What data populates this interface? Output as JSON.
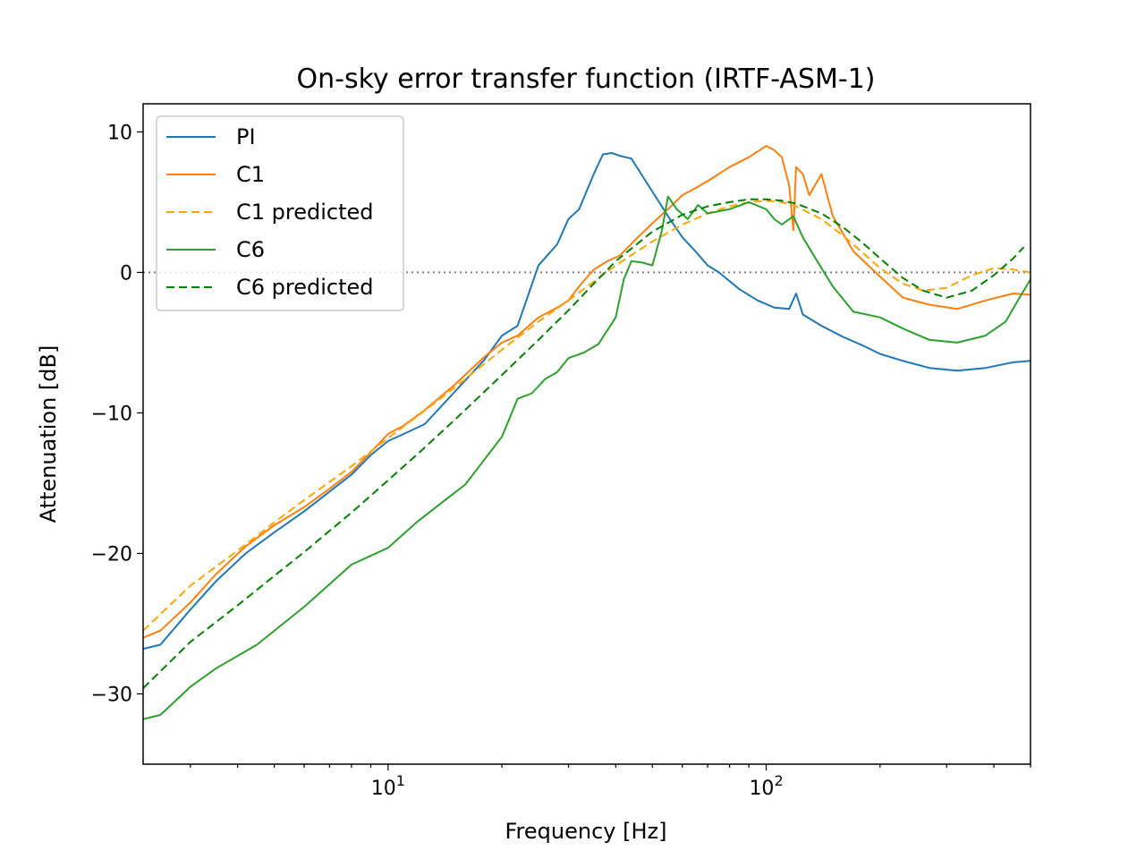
{
  "chart_data": {
    "type": "line",
    "title": "On-sky error transfer function (IRTF-ASM-1)",
    "xlabel": "Frequency [Hz]",
    "ylabel": "Attenuation [dB]",
    "xscale": "log",
    "xlim": [
      2.25,
      500
    ],
    "ylim": [
      -35,
      12
    ],
    "xticks": [
      {
        "value": 10,
        "base": "10",
        "exp": "1"
      },
      {
        "value": 100,
        "base": "10",
        "exp": "2"
      }
    ],
    "yticks": [
      {
        "value": 10,
        "label": "10"
      },
      {
        "value": 0,
        "label": "0"
      },
      {
        "value": -10,
        "label": "−10"
      },
      {
        "value": -20,
        "label": "−20"
      },
      {
        "value": -30,
        "label": "−30"
      }
    ],
    "reference_line": {
      "y": 0,
      "style": "dotted",
      "color": "#808080"
    },
    "legend_position": "top-left",
    "series": [
      {
        "name": "PI",
        "color": "#1f77b4",
        "dash": "",
        "x": [
          2.25,
          2.5,
          3,
          3.5,
          4.2,
          5,
          6,
          7,
          8,
          9,
          10,
          11,
          12.5,
          15,
          18,
          20,
          22,
          25,
          28,
          30,
          32,
          35,
          37,
          39,
          41,
          44,
          48,
          55,
          60,
          65,
          70,
          75,
          85,
          95,
          105,
          115,
          120,
          125,
          140,
          160,
          180,
          200,
          230,
          270,
          320,
          380,
          450,
          500
        ],
        "y": [
          -26.8,
          -26.5,
          -24,
          -22,
          -20,
          -18.5,
          -17,
          -15.6,
          -14.4,
          -13,
          -12,
          -11.5,
          -10.8,
          -8.5,
          -6.2,
          -4.5,
          -3.8,
          0.5,
          2,
          3.8,
          4.5,
          7,
          8.4,
          8.5,
          8.3,
          8.1,
          6.5,
          4,
          2.5,
          1.5,
          0.5,
          0,
          -1.2,
          -2,
          -2.5,
          -2.6,
          -1.5,
          -3,
          -3.8,
          -4.6,
          -5.2,
          -5.8,
          -6.3,
          -6.8,
          -7,
          -6.8,
          -6.4,
          -6.3
        ]
      },
      {
        "name": "C1",
        "color": "#ff7f0e",
        "dash": "",
        "x": [
          2.25,
          2.5,
          3,
          3.5,
          4.2,
          5,
          6,
          7,
          8,
          9,
          10,
          11,
          12.5,
          15,
          18,
          20,
          22,
          25,
          28,
          30,
          32,
          35,
          38,
          41,
          45,
          50,
          55,
          60,
          65,
          70,
          80,
          90,
          100,
          105,
          110,
          115,
          118,
          120,
          125,
          130,
          140,
          150,
          170,
          200,
          230,
          270,
          320,
          380,
          450,
          500
        ],
        "y": [
          -26,
          -25.5,
          -23.5,
          -21.5,
          -19.5,
          -18,
          -16.7,
          -15.4,
          -14.2,
          -12.8,
          -11.5,
          -10.9,
          -9.8,
          -8,
          -6,
          -5,
          -4.5,
          -3.2,
          -2.5,
          -2,
          -1,
          0.2,
          0.8,
          1.2,
          2.3,
          3.5,
          4.5,
          5.5,
          6,
          6.5,
          7.5,
          8.2,
          9,
          8.7,
          8.2,
          6.2,
          3,
          7.5,
          7,
          5.5,
          7,
          4,
          1.5,
          -0.3,
          -1.8,
          -2.3,
          -2.6,
          -2,
          -1.5,
          -1.6
        ]
      },
      {
        "name": "C1 predicted",
        "color": "#ffa500",
        "dash": "9 5",
        "x": [
          2.25,
          3,
          4,
          5,
          6,
          8,
          10,
          12,
          15,
          20,
          25,
          30,
          40,
          50,
          60,
          70,
          80,
          90,
          100,
          110,
          120,
          140,
          160,
          180,
          200,
          230,
          260,
          300,
          350,
          400,
          450,
          500
        ],
        "y": [
          -25.5,
          -22.3,
          -19.8,
          -17.8,
          -16.2,
          -13.8,
          -11.8,
          -10.2,
          -8.2,
          -5.5,
          -3.5,
          -2,
          0.5,
          2.2,
          3.4,
          4.2,
          4.7,
          5,
          5.1,
          5,
          4.7,
          3.8,
          2.6,
          1.4,
          0.3,
          -0.8,
          -1.3,
          -1.1,
          -0.2,
          0.3,
          0.2,
          0
        ]
      },
      {
        "name": "C6",
        "color": "#2ca02c",
        "dash": "",
        "x": [
          2.25,
          2.5,
          3,
          3.5,
          4.5,
          6,
          8,
          10,
          12,
          14,
          16,
          18,
          20,
          22,
          24,
          26,
          28,
          30,
          33,
          36,
          40,
          42,
          44,
          47,
          50,
          53,
          55,
          58,
          62,
          66,
          70,
          80,
          90,
          100,
          105,
          110,
          118,
          125,
          135,
          150,
          170,
          200,
          230,
          270,
          320,
          380,
          430,
          470,
          500
        ],
        "y": [
          -31.8,
          -31.5,
          -29.5,
          -28.2,
          -26.5,
          -23.8,
          -20.8,
          -19.6,
          -17.7,
          -16.3,
          -15.1,
          -13.3,
          -11.7,
          -9,
          -8.6,
          -7.6,
          -7.1,
          -6.1,
          -5.7,
          -5.1,
          -3.2,
          -0.5,
          0.8,
          0.7,
          0.5,
          3,
          5.4,
          4.5,
          3.8,
          4.8,
          4.2,
          4.5,
          5,
          4.5,
          3.8,
          3.4,
          4,
          2.5,
          1,
          -1,
          -2.8,
          -3.2,
          -4,
          -4.8,
          -5,
          -4.5,
          -3.5,
          -1.7,
          -0.5
        ]
      },
      {
        "name": "C6 predicted",
        "color": "#008000",
        "dash": "9 5",
        "x": [
          2.25,
          3,
          4,
          5,
          6,
          8,
          10,
          12,
          15,
          20,
          25,
          30,
          35,
          40,
          50,
          60,
          70,
          80,
          90,
          100,
          110,
          120,
          140,
          160,
          180,
          200,
          230,
          260,
          300,
          350,
          400,
          450,
          480
        ],
        "y": [
          -29.6,
          -26.3,
          -23.7,
          -21.6,
          -19.9,
          -17.1,
          -14.8,
          -12.9,
          -10.5,
          -7.3,
          -4.8,
          -2.7,
          -0.8,
          0.8,
          2.9,
          4.1,
          4.7,
          5,
          5.2,
          5.2,
          5.1,
          4.9,
          4.2,
          3.2,
          2.1,
          1,
          -0.4,
          -1.3,
          -1.8,
          -1.3,
          -0.2,
          1,
          1.8
        ]
      }
    ]
  }
}
